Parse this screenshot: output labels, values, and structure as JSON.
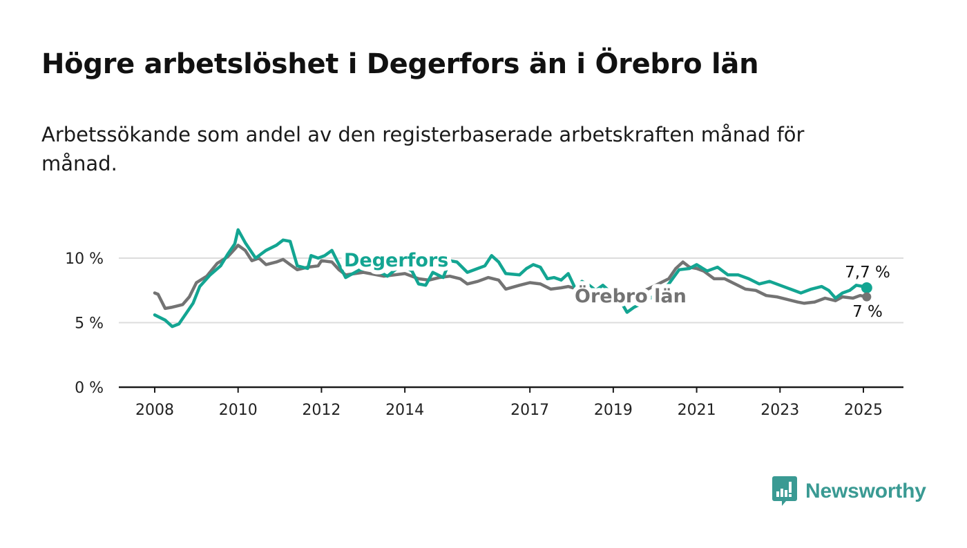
{
  "header": {
    "title": "Högre arbetslöshet i Degerfors än i Örebro län",
    "subtitle": "Arbetssökande som andel av den registerbaserade arbetskraften månad för månad."
  },
  "brand": {
    "name": "Newsworthy",
    "icon": "newsworthy-logo-icon",
    "color": "#3a9a93"
  },
  "chart_data": {
    "type": "line",
    "title": "Högre arbetslöshet i Degerfors än i Örebro län",
    "subtitle": "Arbetssökande som andel av den registerbaserade arbetskraften månad för månad.",
    "xlabel": "",
    "ylabel": "",
    "xlim": [
      2007.9,
      2025.9
    ],
    "ylim": [
      0,
      12.5
    ],
    "x_ticks": [
      2008,
      2010,
      2012,
      2014,
      2017,
      2019,
      2021,
      2023,
      2025
    ],
    "x_tick_labels": [
      "2008",
      "2010",
      "2012",
      "2014",
      "2017",
      "2019",
      "2021",
      "2023",
      "2025"
    ],
    "y_ticks": [
      0,
      5,
      10
    ],
    "y_tick_labels": [
      "0 %",
      "5 %",
      "10 %"
    ],
    "grid": "horizontal",
    "legend": "inline labels",
    "series": [
      {
        "name": "Degerfors",
        "color": "#13a592",
        "end_label": "7,7 %",
        "points": [
          [
            2008.0,
            5.6
          ],
          [
            2008.25,
            5.2
          ],
          [
            2008.42,
            4.7
          ],
          [
            2008.58,
            4.9
          ],
          [
            2008.75,
            5.7
          ],
          [
            2008.92,
            6.5
          ],
          [
            2009.08,
            7.8
          ],
          [
            2009.33,
            8.7
          ],
          [
            2009.58,
            9.4
          ],
          [
            2009.75,
            10.3
          ],
          [
            2009.92,
            11.1
          ],
          [
            2010.0,
            12.2
          ],
          [
            2010.17,
            11.2
          ],
          [
            2010.42,
            10.0
          ],
          [
            2010.67,
            10.6
          ],
          [
            2010.92,
            11.0
          ],
          [
            2011.08,
            11.4
          ],
          [
            2011.25,
            11.3
          ],
          [
            2011.42,
            9.4
          ],
          [
            2011.67,
            9.2
          ],
          [
            2011.75,
            10.2
          ],
          [
            2011.92,
            10.0
          ],
          [
            2012.08,
            10.2
          ],
          [
            2012.25,
            10.6
          ],
          [
            2012.42,
            9.5
          ],
          [
            2012.58,
            8.5
          ],
          [
            2012.92,
            9.1
          ],
          [
            2013.25,
            9.2
          ],
          [
            2013.58,
            8.6
          ],
          [
            2013.92,
            9.5
          ],
          [
            2014.17,
            9.0
          ],
          [
            2014.33,
            8.0
          ],
          [
            2014.5,
            7.9
          ],
          [
            2014.67,
            8.9
          ],
          [
            2014.92,
            8.5
          ],
          [
            2015.08,
            9.8
          ],
          [
            2015.25,
            9.7
          ],
          [
            2015.5,
            8.9
          ],
          [
            2015.75,
            9.2
          ],
          [
            2015.92,
            9.4
          ],
          [
            2016.08,
            10.2
          ],
          [
            2016.25,
            9.7
          ],
          [
            2016.42,
            8.8
          ],
          [
            2016.75,
            8.7
          ],
          [
            2016.92,
            9.2
          ],
          [
            2017.08,
            9.5
          ],
          [
            2017.25,
            9.3
          ],
          [
            2017.42,
            8.4
          ],
          [
            2017.58,
            8.5
          ],
          [
            2017.75,
            8.3
          ],
          [
            2017.92,
            8.8
          ],
          [
            2018.08,
            7.7
          ],
          [
            2018.25,
            8.2
          ],
          [
            2018.42,
            7.9
          ],
          [
            2018.58,
            7.5
          ],
          [
            2018.75,
            7.9
          ],
          [
            2018.92,
            7.4
          ],
          [
            2019.17,
            6.7
          ],
          [
            2019.33,
            5.8
          ],
          [
            2019.5,
            6.2
          ],
          [
            2019.75,
            6.6
          ],
          [
            2020.08,
            7.3
          ],
          [
            2020.33,
            8.0
          ],
          [
            2020.58,
            9.1
          ],
          [
            2020.83,
            9.2
          ],
          [
            2021.0,
            9.5
          ],
          [
            2021.25,
            9.0
          ],
          [
            2021.5,
            9.3
          ],
          [
            2021.75,
            8.7
          ],
          [
            2022.0,
            8.7
          ],
          [
            2022.25,
            8.4
          ],
          [
            2022.5,
            8.0
          ],
          [
            2022.75,
            8.2
          ],
          [
            2023.0,
            7.9
          ],
          [
            2023.25,
            7.6
          ],
          [
            2023.5,
            7.3
          ],
          [
            2023.75,
            7.6
          ],
          [
            2024.0,
            7.8
          ],
          [
            2024.17,
            7.5
          ],
          [
            2024.33,
            6.9
          ],
          [
            2024.5,
            7.3
          ],
          [
            2024.67,
            7.5
          ],
          [
            2024.83,
            7.9
          ],
          [
            2025.0,
            7.8
          ],
          [
            2025.08,
            7.7
          ]
        ]
      },
      {
        "name": "Örebro län",
        "color": "#737373",
        "end_label": "7 %",
        "points": [
          [
            2008.0,
            7.3
          ],
          [
            2008.08,
            7.2
          ],
          [
            2008.25,
            6.1
          ],
          [
            2008.42,
            6.2
          ],
          [
            2008.67,
            6.4
          ],
          [
            2008.83,
            7.0
          ],
          [
            2009.0,
            8.1
          ],
          [
            2009.25,
            8.6
          ],
          [
            2009.5,
            9.6
          ],
          [
            2009.75,
            10.1
          ],
          [
            2009.92,
            10.7
          ],
          [
            2010.0,
            11.0
          ],
          [
            2010.17,
            10.6
          ],
          [
            2010.33,
            9.8
          ],
          [
            2010.5,
            10.0
          ],
          [
            2010.67,
            9.5
          ],
          [
            2010.92,
            9.7
          ],
          [
            2011.08,
            9.9
          ],
          [
            2011.25,
            9.5
          ],
          [
            2011.42,
            9.1
          ],
          [
            2011.67,
            9.3
          ],
          [
            2011.92,
            9.4
          ],
          [
            2012.0,
            9.8
          ],
          [
            2012.25,
            9.7
          ],
          [
            2012.42,
            9.1
          ],
          [
            2012.58,
            8.7
          ],
          [
            2013.0,
            8.9
          ],
          [
            2013.5,
            8.6
          ],
          [
            2014.0,
            8.8
          ],
          [
            2014.33,
            8.4
          ],
          [
            2014.58,
            8.3
          ],
          [
            2014.83,
            8.5
          ],
          [
            2015.08,
            8.6
          ],
          [
            2015.33,
            8.4
          ],
          [
            2015.5,
            8.0
          ],
          [
            2015.75,
            8.2
          ],
          [
            2016.0,
            8.5
          ],
          [
            2016.25,
            8.3
          ],
          [
            2016.42,
            7.6
          ],
          [
            2016.75,
            7.9
          ],
          [
            2017.0,
            8.1
          ],
          [
            2017.25,
            8.0
          ],
          [
            2017.5,
            7.6
          ],
          [
            2017.75,
            7.7
          ],
          [
            2017.92,
            7.8
          ],
          [
            2018.25,
            7.5
          ],
          [
            2018.75,
            7.2
          ],
          [
            2019.0,
            7.3
          ],
          [
            2019.33,
            7.1
          ],
          [
            2019.58,
            7.3
          ],
          [
            2019.83,
            7.6
          ],
          [
            2020.08,
            8.0
          ],
          [
            2020.33,
            8.4
          ],
          [
            2020.5,
            9.2
          ],
          [
            2020.67,
            9.7
          ],
          [
            2020.83,
            9.3
          ],
          [
            2021.0,
            9.2
          ],
          [
            2021.17,
            9.0
          ],
          [
            2021.42,
            8.4
          ],
          [
            2021.67,
            8.4
          ],
          [
            2021.92,
            8.0
          ],
          [
            2022.17,
            7.6
          ],
          [
            2022.42,
            7.5
          ],
          [
            2022.67,
            7.1
          ],
          [
            2022.92,
            7.0
          ],
          [
            2023.17,
            6.8
          ],
          [
            2023.42,
            6.6
          ],
          [
            2023.58,
            6.5
          ],
          [
            2023.83,
            6.6
          ],
          [
            2024.08,
            6.9
          ],
          [
            2024.33,
            6.7
          ],
          [
            2024.5,
            7.0
          ],
          [
            2024.75,
            6.9
          ],
          [
            2024.92,
            7.1
          ],
          [
            2025.08,
            7.0
          ]
        ]
      }
    ]
  }
}
